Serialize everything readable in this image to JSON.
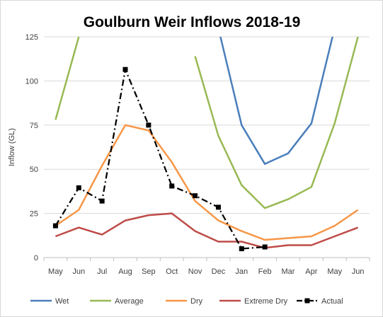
{
  "chart_data": {
    "type": "line",
    "title": "Goulburn Weir Inflows 2018-19",
    "xlabel": "",
    "ylabel": "Inflow (GL)",
    "ylim": [
      0,
      125
    ],
    "yticks": [
      0,
      25,
      50,
      75,
      100,
      125
    ],
    "categories": [
      "May",
      "Jun",
      "Jul",
      "Aug",
      "Sep",
      "Oct",
      "Nov",
      "Dec",
      "Jan",
      "Feb",
      "Mar",
      "Apr",
      "May",
      "Jun"
    ],
    "grid": true,
    "legend_position": "bottom",
    "series": [
      {
        "name": "Wet",
        "color": "#4a7ebb",
        "style": "solid",
        "markers": false,
        "values": [
          null,
          null,
          null,
          null,
          null,
          null,
          null,
          130,
          75,
          53,
          59,
          76,
          130,
          null
        ]
      },
      {
        "name": "Average",
        "color": "#98b954",
        "style": "solid",
        "markers": false,
        "values": [
          78,
          125,
          null,
          null,
          null,
          null,
          114,
          69,
          41,
          28,
          33,
          40,
          76,
          125
        ]
      },
      {
        "name": "Dry",
        "color": "#f79646",
        "style": "solid",
        "markers": false,
        "values": [
          18,
          27,
          52,
          75,
          72,
          54,
          32,
          21,
          15,
          10,
          11,
          12,
          18,
          27
        ]
      },
      {
        "name": "Extreme Dry",
        "color": "#be4b48",
        "style": "solid",
        "markers": false,
        "values": [
          12,
          17,
          13,
          21,
          24,
          25,
          15,
          9,
          9,
          5.5,
          7,
          7,
          12,
          17
        ]
      },
      {
        "name": "Actual",
        "color": "#000000",
        "style": "dash-dot",
        "markers": true,
        "values": [
          18,
          39.5,
          32,
          106.5,
          75,
          40.5,
          35,
          28.5,
          5,
          6,
          null,
          null,
          null,
          null
        ]
      }
    ]
  }
}
